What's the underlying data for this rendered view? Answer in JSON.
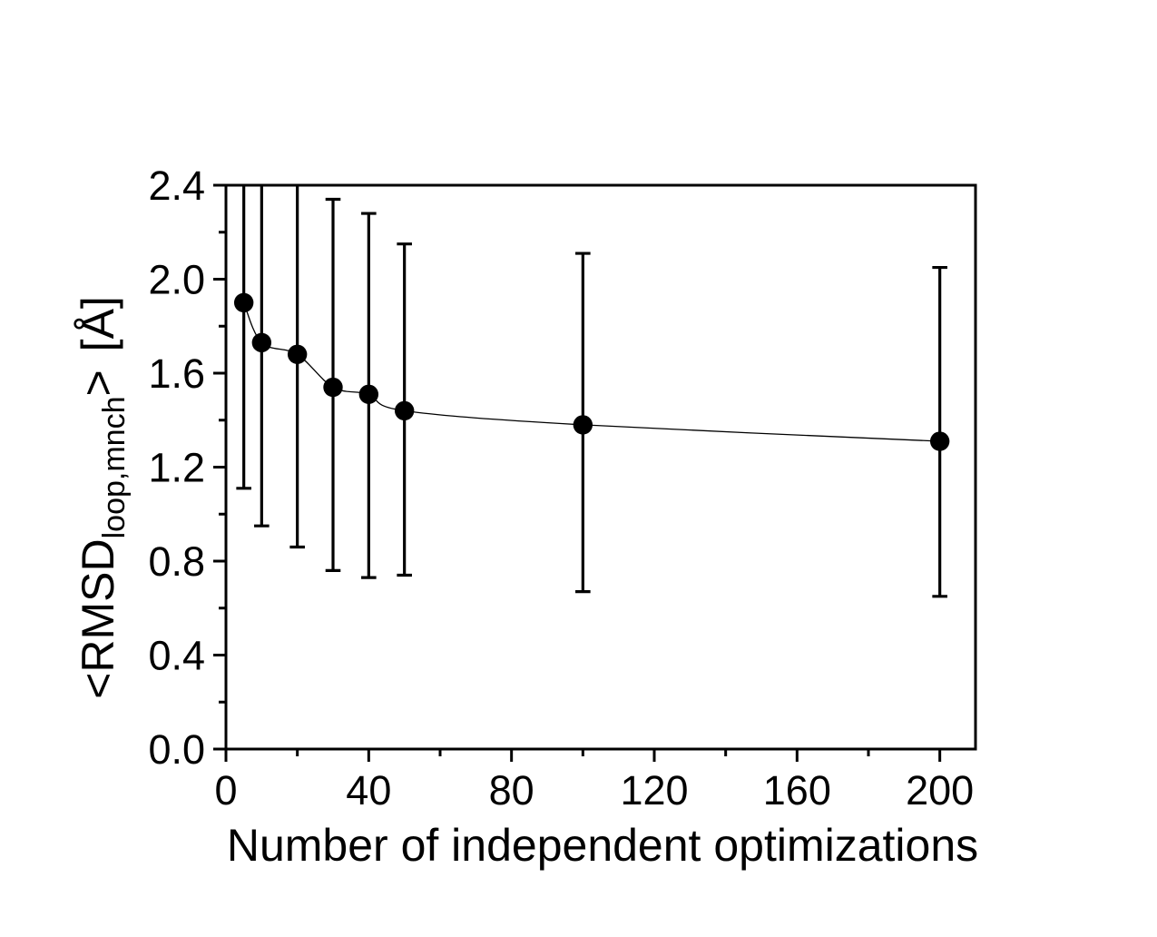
{
  "figure": {
    "background_color": "#ffffff",
    "ink_color": "#000000"
  },
  "chart_data": {
    "type": "scatter",
    "title": "",
    "xlabel": "Number of independent optimizations",
    "ylabel": "<RMSD_loop,mnch> [Å]",
    "ylabel_parts": {
      "pre": "<RMSD",
      "sub": "loop,mnch",
      "post": ">",
      "unit": "[Å]"
    },
    "xlim": [
      0,
      210
    ],
    "ylim": [
      0,
      2.4
    ],
    "grid": false,
    "legend": null,
    "x_major_ticks": [
      0,
      40,
      80,
      120,
      160,
      200
    ],
    "x_minor_ticks": [
      20,
      60,
      100,
      140,
      180
    ],
    "x_tick_labels": [
      "0",
      "40",
      "80",
      "120",
      "160",
      "200"
    ],
    "y_major_ticks": [
      0.0,
      0.4,
      0.8,
      1.2,
      1.6,
      2.0,
      2.4
    ],
    "y_minor_ticks": [
      0.2,
      0.6,
      1.0,
      1.4,
      1.8,
      2.2
    ],
    "y_tick_labels": [
      "0.0",
      "0.4",
      "0.8",
      "1.2",
      "1.6",
      "2.0",
      "2.4"
    ],
    "series": [
      {
        "marker": "filled-circle",
        "color": "#000000",
        "has_fit_curve": true,
        "x": [
          5,
          10,
          20,
          30,
          40,
          50,
          100,
          200
        ],
        "y": [
          1.9,
          1.73,
          1.68,
          1.54,
          1.51,
          1.44,
          1.38,
          1.31
        ],
        "err_low": [
          1.11,
          0.95,
          0.86,
          0.76,
          0.73,
          0.74,
          0.67,
          0.65
        ],
        "err_high": [
          2.4,
          2.4,
          2.4,
          2.34,
          2.28,
          2.15,
          2.11,
          2.05
        ],
        "err_high_clipped": [
          true,
          true,
          true,
          false,
          false,
          false,
          false,
          false
        ]
      }
    ]
  }
}
